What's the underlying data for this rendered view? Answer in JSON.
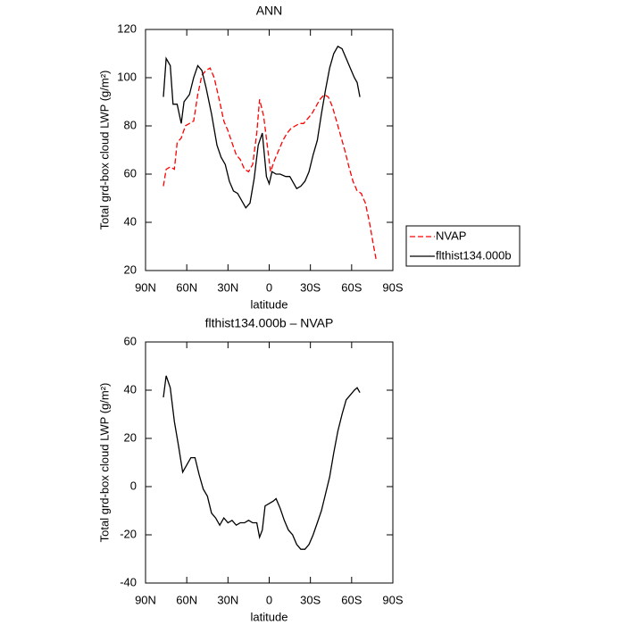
{
  "chart_data": [
    {
      "type": "line",
      "title": "ANN",
      "xlabel": "latitude",
      "ylabel": "Total grd-box cloud LWP (g/m²)",
      "xlim": [
        90,
        -90
      ],
      "ylim": [
        20,
        120
      ],
      "xticks": [
        {
          "value": 90,
          "label": "90N"
        },
        {
          "value": 60,
          "label": "60N"
        },
        {
          "value": 30,
          "label": "30N"
        },
        0,
        {
          "value": -30,
          "label": "30S"
        },
        {
          "value": -60,
          "label": "60S"
        },
        {
          "value": -90,
          "label": "90S"
        }
      ],
      "yticks": [
        20,
        40,
        60,
        80,
        100,
        120
      ],
      "legend": "right",
      "series": [
        {
          "name": "NVAP",
          "color": "#ff0000",
          "line_style": "dashed",
          "x": [
            77,
            75,
            72,
            69,
            67,
            64,
            61,
            58,
            55,
            52,
            49,
            46,
            43,
            40,
            36,
            33,
            30,
            27,
            24,
            21,
            18,
            15,
            12,
            9,
            7,
            4,
            1,
            -1,
            -4,
            -7,
            -10,
            -13,
            -16,
            -19,
            -22,
            -25,
            -28,
            -31,
            -34,
            -37,
            -40,
            -43,
            -46,
            -49,
            -52,
            -55,
            -58,
            -61,
            -64,
            -67,
            -70,
            -73,
            -76,
            -78
          ],
          "values": [
            55,
            62,
            63,
            62,
            73,
            75,
            80,
            81,
            82,
            93,
            101,
            103,
            104,
            100,
            90,
            82,
            78,
            73,
            68,
            66,
            62,
            61,
            64,
            77,
            91,
            84,
            70,
            61,
            66,
            70,
            74,
            77,
            79,
            80,
            81,
            81,
            83,
            85,
            88,
            91,
            93,
            92,
            88,
            82,
            76,
            70,
            63,
            57,
            53,
            52,
            48,
            40,
            30,
            24
          ]
        },
        {
          "name": "flthist134.000b",
          "color": "#000000",
          "line_style": "solid",
          "x": [
            77,
            75,
            72,
            70,
            67,
            64,
            62,
            58,
            55,
            52,
            49,
            46,
            42,
            38,
            35,
            32,
            29,
            26,
            23,
            20,
            17,
            14,
            11,
            8,
            5,
            2,
            0,
            -2,
            -5,
            -8,
            -12,
            -15,
            -18,
            -20,
            -23,
            -26,
            -29,
            -32,
            -35,
            -38,
            -41,
            -44,
            -47,
            -50,
            -53,
            -56,
            -59,
            -62,
            -64,
            -66
          ],
          "values": [
            92,
            108,
            105,
            89,
            89,
            81,
            90,
            93,
            100,
            105,
            103,
            96,
            85,
            72,
            67,
            64,
            57,
            53,
            52,
            49,
            46,
            48,
            58,
            72,
            77,
            59,
            56,
            61,
            60,
            60,
            59,
            59,
            56,
            54,
            55,
            57,
            61,
            68,
            74,
            85,
            95,
            104,
            110,
            113,
            112,
            108,
            104,
            100,
            98,
            92
          ]
        }
      ]
    },
    {
      "type": "line",
      "title": "flthist134.000b – NVAP",
      "xlabel": "latitude",
      "ylabel": "Total grd-box cloud LWP (g/m²)",
      "xlim": [
        90,
        -90
      ],
      "ylim": [
        -40,
        60
      ],
      "xticks": [
        {
          "value": 90,
          "label": "90N"
        },
        {
          "value": 60,
          "label": "60N"
        },
        {
          "value": 30,
          "label": "30N"
        },
        0,
        {
          "value": -30,
          "label": "30S"
        },
        {
          "value": -60,
          "label": "60S"
        },
        {
          "value": -90,
          "label": "90S"
        }
      ],
      "yticks": [
        -40,
        -20,
        0,
        20,
        40,
        60
      ],
      "series": [
        {
          "color": "#000000",
          "line_style": "solid",
          "x": [
            77,
            75,
            72,
            69,
            66,
            63,
            60,
            57,
            54,
            51,
            48,
            45,
            42,
            39,
            36,
            33,
            30,
            27,
            24,
            21,
            18,
            15,
            12,
            9,
            7,
            5,
            3,
            0,
            -3,
            -5,
            -8,
            -11,
            -14,
            -17,
            -20,
            -23,
            -26,
            -29,
            -32,
            -35,
            -38,
            -41,
            -44,
            -47,
            -50,
            -53,
            -56,
            -59,
            -62,
            -64,
            -66
          ],
          "values": [
            37,
            46,
            41,
            27,
            17,
            6,
            9,
            12,
            12,
            5,
            -1,
            -4,
            -11,
            -13,
            -16,
            -13,
            -15,
            -14,
            -16,
            -15,
            -15,
            -14,
            -15,
            -15,
            -21,
            -18,
            -8,
            -7,
            -6,
            -5,
            -9,
            -14,
            -18,
            -20,
            -24,
            -26,
            -26,
            -24,
            -20,
            -15,
            -10,
            -3,
            4,
            14,
            23,
            30,
            36,
            38,
            40,
            41,
            39
          ]
        }
      ]
    }
  ]
}
